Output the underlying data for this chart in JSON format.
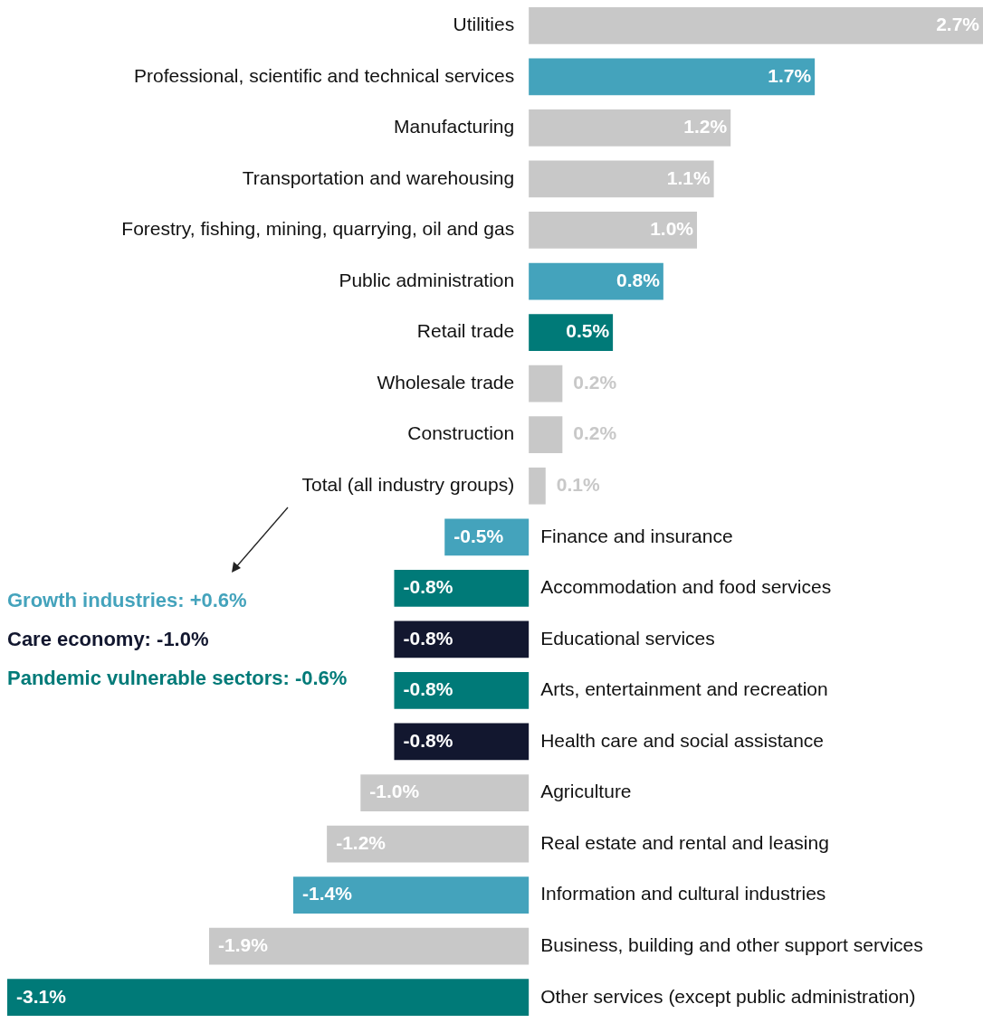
{
  "chart_data": {
    "type": "bar",
    "orientation": "horizontal",
    "legend": false,
    "value_labels": [
      "2.7%",
      "1.7%",
      "1.2%",
      "1.1%",
      "1.0%",
      "0.8%",
      "0.5%",
      "0.2%",
      "0.2%",
      "0.1%",
      "-0.5%",
      "-0.8%",
      "-0.8%",
      "-0.8%",
      "-0.8%",
      "-1.0%",
      "-1.2%",
      "-1.4%",
      "-1.9%",
      "-3.1%"
    ],
    "categories": [
      "Utilities",
      "Professional, scientific and technical services",
      "Manufacturing",
      "Transportation and warehousing",
      "Forestry, fishing, mining, quarrying, oil and gas",
      "Public administration",
      "Retail trade",
      "Wholesale trade",
      "Construction",
      "Total (all industry groups)",
      "Finance and insurance",
      "Accommodation and food services",
      "Educational services",
      "Arts, entertainment and recreation",
      "Health care and social assistance",
      "Agriculture",
      "Real estate and rental and leasing",
      "Information and cultural industries",
      "Business, building and other support services",
      "Other services (except public administration)"
    ],
    "values": [
      2.7,
      1.7,
      1.2,
      1.1,
      1.0,
      0.8,
      0.5,
      0.2,
      0.2,
      0.1,
      -0.5,
      -0.8,
      -0.8,
      -0.8,
      -0.8,
      -1.0,
      -1.2,
      -1.4,
      -1.9,
      -3.1
    ],
    "colors": [
      "#c8c8c8",
      "#44a3bc",
      "#c8c8c8",
      "#c8c8c8",
      "#c8c8c8",
      "#44a3bc",
      "#007a78",
      "#c8c8c8",
      "#c8c8c8",
      "#c8c8c8",
      "#44a3bc",
      "#007a78",
      "#12172f",
      "#007a78",
      "#12172f",
      "#c8c8c8",
      "#c8c8c8",
      "#44a3bc",
      "#c8c8c8",
      "#007a78"
    ],
    "annotations": [
      "Growth industries: +0.6%",
      "Care economy: -1.0%",
      "Pandemic vulnerable sectors: -0.6%"
    ]
  }
}
